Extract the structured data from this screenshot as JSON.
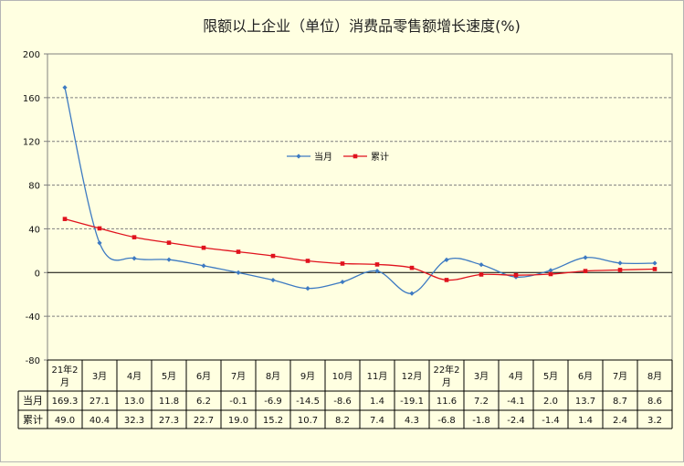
{
  "chart_data": {
    "type": "line",
    "title": "限额以上企业（单位）消费品零售额增长速度(%)",
    "categories": [
      "21年2月",
      "3月",
      "4月",
      "5月",
      "6月",
      "7月",
      "8月",
      "9月",
      "10月",
      "11月",
      "12月",
      "22年2月",
      "3月",
      "4月",
      "5月",
      "6月",
      "7月",
      "8月"
    ],
    "category_lines": [
      [
        "21年2",
        "月"
      ],
      [
        "3月"
      ],
      [
        "4月"
      ],
      [
        "5月"
      ],
      [
        "6月"
      ],
      [
        "7月"
      ],
      [
        "8月"
      ],
      [
        "9月"
      ],
      [
        "10月"
      ],
      [
        "11月"
      ],
      [
        "12月"
      ],
      [
        "22年2",
        "月"
      ],
      [
        "3月"
      ],
      [
        "4月"
      ],
      [
        "5月"
      ],
      [
        "6月"
      ],
      [
        "7月"
      ],
      [
        "8月"
      ]
    ],
    "series": [
      {
        "name": "当月",
        "color": "#3d7ac2",
        "values": [
          169.3,
          27.1,
          13.0,
          11.8,
          6.2,
          -0.1,
          -6.9,
          -14.5,
          -8.6,
          1.4,
          -19.1,
          11.6,
          7.2,
          -4.1,
          2.0,
          13.7,
          8.7,
          8.6
        ],
        "labels": [
          "169.3",
          "27.1",
          "13.0",
          "11.8",
          "6.2",
          "-0.1",
          "-6.9",
          "-14.5",
          "-8.6",
          "1.4",
          "-19.1",
          "11.6",
          "7.2",
          "-4.1",
          "2.0",
          "13.7",
          "8.7",
          "8.6"
        ]
      },
      {
        "name": "累计",
        "color": "#e0121d",
        "values": [
          49.0,
          40.4,
          32.3,
          27.3,
          22.7,
          19.0,
          15.2,
          10.7,
          8.2,
          7.4,
          4.3,
          -6.8,
          -1.8,
          -2.4,
          -1.4,
          1.4,
          2.4,
          3.2
        ],
        "labels": [
          "49.0",
          "40.4",
          "32.3",
          "27.3",
          "22.7",
          "19.0",
          "15.2",
          "10.7",
          "8.2",
          "7.4",
          "4.3",
          "-6.8",
          "-1.8",
          "-2.4",
          "-1.4",
          "1.4",
          "2.4",
          "3.2"
        ]
      }
    ],
    "ylim": [
      -80,
      200
    ],
    "yticks": [
      200,
      160,
      120,
      80,
      40,
      0,
      -40,
      -80
    ],
    "grid": true,
    "legend": "center",
    "data_table": true
  }
}
